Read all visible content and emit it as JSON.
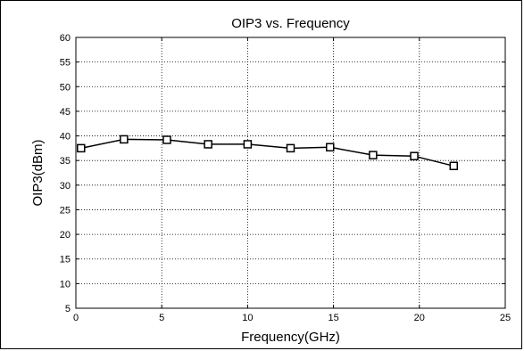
{
  "chart_data": {
    "type": "line",
    "title": "OIP3 vs. Frequency",
    "xlabel": "Frequency(GHz)",
    "ylabel": "OIP3(dBm)",
    "xlim": [
      0,
      25
    ],
    "ylim": [
      5,
      60
    ],
    "xticks": [
      0,
      5,
      10,
      15,
      20,
      25
    ],
    "yticks": [
      5,
      10,
      15,
      20,
      25,
      30,
      35,
      40,
      45,
      50,
      55,
      60
    ],
    "grid": true,
    "marker": "square",
    "line_color": "#000000",
    "series": [
      {
        "x": [
          0.3,
          2.8,
          5.3,
          7.7,
          10.0,
          12.5,
          14.8,
          17.3,
          19.7,
          22.0
        ],
        "values": [
          37.5,
          39.3,
          39.2,
          38.3,
          38.3,
          37.5,
          37.7,
          36.1,
          35.9,
          33.9
        ]
      }
    ]
  }
}
